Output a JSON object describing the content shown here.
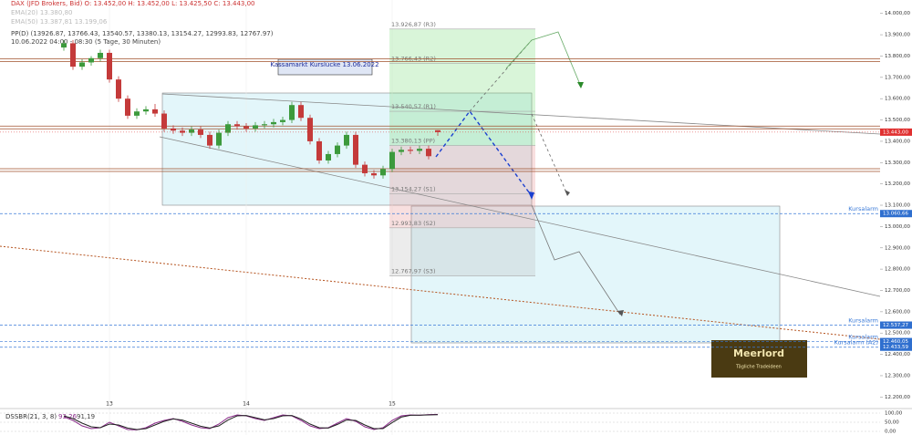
{
  "chart_data": {
    "type": "candlestick",
    "header": {
      "instrument": "DAX (JFD Brokers, Bid)  O: 13.452,00  H: 13.452,00  L: 13.425,50  C: 13.443,00",
      "ema1": "EMA(20)  13.380,80",
      "ema2": "EMA(50)  13.387,81  13.199,06",
      "pivot": "PP(D)  (13926.87, 13766.43, 13540.57, 13380.13, 13154.27, 12993.83, 12767.97)",
      "range": "10.06.2022 04:00 - 08:30   (5 Tage, 30 Minuten)"
    },
    "annotation": "Kassamarkt Kurslücke 13.06.2022",
    "categories": [
      null,
      null,
      null,
      null,
      null,
      "13",
      null,
      null,
      null,
      null,
      null,
      null,
      null,
      null,
      null,
      null,
      null,
      null,
      null,
      null,
      "14",
      null,
      null,
      null,
      null,
      null,
      null,
      null,
      null,
      null,
      null,
      null,
      null,
      null,
      null,
      null,
      "15",
      null,
      null,
      null,
      null,
      null
    ],
    "open": [
      13840,
      13860,
      13750,
      13770,
      13790,
      13815,
      13690,
      13600,
      13520,
      13540,
      13550,
      13530,
      13460,
      13450,
      13440,
      13455,
      13430,
      13380,
      13440,
      13480,
      13470,
      13460,
      13475,
      13480,
      13490,
      13500,
      13570,
      13510,
      13400,
      13310,
      13340,
      13380,
      13430,
      13290,
      13250,
      13240,
      13270,
      13350,
      13360,
      13355,
      13365,
      13452
    ],
    "high": [
      13875,
      13875,
      13785,
      13800,
      13830,
      13830,
      13705,
      13615,
      13555,
      13565,
      13575,
      13545,
      13475,
      13465,
      13470,
      13470,
      13445,
      13455,
      13495,
      13495,
      13485,
      13490,
      13495,
      13505,
      13515,
      13585,
      13585,
      13525,
      13415,
      13355,
      13395,
      13445,
      13445,
      13305,
      13265,
      13285,
      13365,
      13375,
      13375,
      13380,
      13380,
      13452
    ],
    "low": [
      13825,
      13735,
      13735,
      13755,
      13775,
      13675,
      13585,
      13505,
      13505,
      13525,
      13515,
      13445,
      13435,
      13425,
      13425,
      13415,
      13365,
      13365,
      13425,
      13455,
      13445,
      13445,
      13460,
      13465,
      13475,
      13485,
      13495,
      13385,
      13295,
      13295,
      13325,
      13365,
      13275,
      13235,
      13225,
      13225,
      13255,
      13335,
      13340,
      13340,
      13315,
      13425.5
    ],
    "close": [
      13860,
      13750,
      13770,
      13790,
      13815,
      13690,
      13600,
      13520,
      13540,
      13550,
      13530,
      13460,
      13450,
      13440,
      13455,
      13430,
      13380,
      13440,
      13480,
      13470,
      13460,
      13475,
      13480,
      13490,
      13500,
      13570,
      13510,
      13400,
      13310,
      13340,
      13380,
      13430,
      13290,
      13250,
      13240,
      13270,
      13350,
      13360,
      13355,
      13365,
      13330,
      13443
    ],
    "up_color": "#3c9a3c",
    "down_color": "#c43a3a",
    "ylim": [
      12180,
      14063
    ],
    "yticks": [
      {
        "value": 12200,
        "label": "12.200,00"
      },
      {
        "value": 12300,
        "label": "12.300,00"
      },
      {
        "value": 12400,
        "label": "12.400,00"
      },
      {
        "value": 12500,
        "label": "12.500,00"
      },
      {
        "value": 12600,
        "label": "12.600,00"
      },
      {
        "value": 12700,
        "label": "12.700,00"
      },
      {
        "value": 12800,
        "label": "12.800,00"
      },
      {
        "value": 12900,
        "label": "12.900,00"
      },
      {
        "value": 13000,
        "label": "13.000,00"
      },
      {
        "value": 13100,
        "label": "13.100,00"
      },
      {
        "value": 13200,
        "label": "13.200,00"
      },
      {
        "value": 13300,
        "label": "13.300,00"
      },
      {
        "value": 13400,
        "label": "13.400,00"
      },
      {
        "value": 13500,
        "label": "13.500,00"
      },
      {
        "value": 13600,
        "label": "13.600,00"
      },
      {
        "value": 13700,
        "label": "13.700,00"
      },
      {
        "value": 13800,
        "label": "13.800,00"
      },
      {
        "value": 13900,
        "label": "13.900,00"
      },
      {
        "value": 14000,
        "label": "14.000,00"
      }
    ],
    "last_price": {
      "value": 13443,
      "label": "13.443,00"
    },
    "pivots": [
      {
        "value": 13926.87,
        "label": "13.926,87 (R3)"
      },
      {
        "value": 13766.43,
        "label": "13.766,43 (R2)"
      },
      {
        "value": 13540.57,
        "label": "13.540,57 (R1)"
      },
      {
        "value": 13380.13,
        "label": "13.380,13 (PP)"
      },
      {
        "value": 13154.27,
        "label": "13.154,27 (S1)"
      },
      {
        "value": 12993.83,
        "label": "12.993,83 (S2)"
      },
      {
        "value": 12767.97,
        "label": "12.767,97 (S3)"
      }
    ],
    "levels": [
      13780,
      13465,
      13265
    ],
    "alarms": [
      {
        "name": "Kursalarm",
        "value": 13060.66,
        "label": "13.060,66"
      },
      {
        "name": "Kursalarm",
        "value": 12537.27,
        "label": "12.537,27"
      },
      {
        "name": "Kursalarm",
        "value": 12460.05,
        "label": "12.460,05"
      },
      {
        "name": "Kursalarm (A2)",
        "value": 12433.59,
        "label": "12.433,59"
      }
    ],
    "indicator": {
      "name": "DSSBR(21, 3, 8)",
      "readout": [
        "93.26",
        "91,19"
      ],
      "ylim": [
        0,
        100
      ],
      "yticks": [
        {
          "value": 0,
          "label": "0,00"
        },
        {
          "value": 50,
          "label": "50,00"
        },
        {
          "value": 100,
          "label": "100,00"
        }
      ],
      "series": [
        {
          "color": "#8a2a8a",
          "values": [
            80,
            60,
            30,
            15,
            20,
            50,
            30,
            10,
            8,
            20,
            45,
            60,
            70,
            55,
            35,
            20,
            15,
            40,
            75,
            90,
            85,
            70,
            60,
            75,
            90,
            85,
            60,
            30,
            15,
            20,
            45,
            70,
            55,
            25,
            10,
            20,
            60,
            85,
            90,
            88,
            92,
            93.26
          ]
        },
        {
          "color": "#222222",
          "values": [
            85,
            70,
            45,
            25,
            20,
            40,
            35,
            18,
            10,
            15,
            35,
            55,
            68,
            62,
            45,
            28,
            18,
            30,
            62,
            85,
            87,
            75,
            63,
            70,
            85,
            87,
            68,
            40,
            20,
            18,
            38,
            62,
            60,
            35,
            15,
            15,
            48,
            78,
            88,
            89,
            90,
            91.19
          ]
        }
      ]
    },
    "logo": {
      "title": "Meerlord",
      "subtitle": "Tägliche Tradeideen"
    }
  }
}
